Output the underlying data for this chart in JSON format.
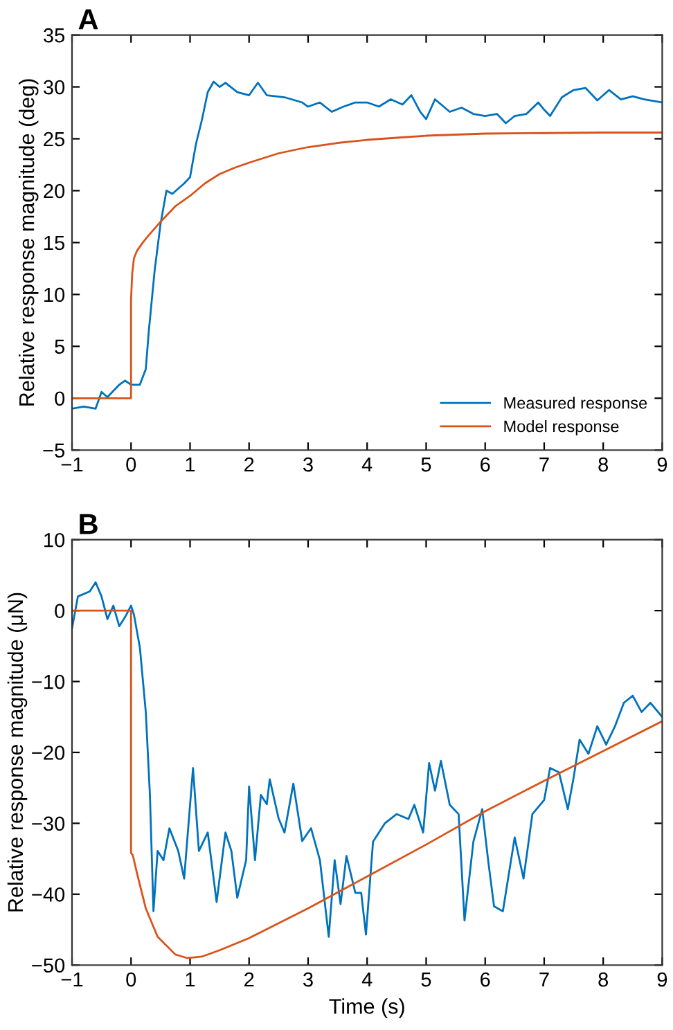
{
  "chart_data": [
    {
      "type": "line",
      "title": "A",
      "ylabel": "Relative response magnitude (deg)",
      "xlim": [
        -1,
        9
      ],
      "ylim": [
        -5,
        35
      ],
      "xticks": [
        -1,
        0,
        1,
        2,
        3,
        4,
        5,
        6,
        7,
        8,
        9
      ],
      "yticks": [
        -5,
        0,
        5,
        10,
        15,
        20,
        25,
        30,
        35
      ],
      "grid": false,
      "legend": "bottom right",
      "series": [
        {
          "name": "Measured response",
          "color": "#0072bd",
          "x": [
            -1,
            -0.8,
            -0.6,
            -0.5,
            -0.4,
            -0.2,
            -0.1,
            0,
            0.15,
            0.25,
            0.3,
            0.4,
            0.5,
            0.6,
            0.7,
            0.8,
            0.9,
            1.0,
            1.1,
            1.2,
            1.3,
            1.4,
            1.5,
            1.6,
            1.8,
            2.0,
            2.15,
            2.3,
            2.6,
            2.9,
            3.0,
            3.2,
            3.4,
            3.6,
            3.8,
            4.0,
            4.2,
            4.4,
            4.6,
            4.75,
            4.9,
            5.0,
            5.15,
            5.4,
            5.6,
            5.8,
            6.0,
            6.2,
            6.35,
            6.5,
            6.7,
            6.9,
            7.0,
            7.1,
            7.3,
            7.5,
            7.7,
            7.9,
            8.1,
            8.3,
            8.5,
            8.7,
            9.0
          ],
          "values": [
            -1.0,
            -0.8,
            -1.0,
            0.6,
            0.1,
            1.3,
            1.7,
            1.3,
            1.3,
            2.8,
            6.4,
            12.3,
            16.8,
            20.0,
            19.7,
            20.2,
            20.7,
            21.3,
            24.5,
            26.8,
            29.5,
            30.5,
            30.0,
            30.4,
            29.5,
            29.2,
            30.4,
            29.2,
            29.0,
            28.5,
            28.1,
            28.5,
            27.6,
            28.1,
            28.5,
            28.5,
            28.1,
            28.8,
            28.3,
            29.2,
            27.6,
            26.9,
            28.8,
            27.6,
            28.0,
            27.4,
            27.2,
            27.4,
            26.5,
            27.2,
            27.4,
            28.5,
            27.8,
            27.2,
            29.0,
            29.7,
            29.9,
            28.7,
            29.7,
            28.8,
            29.1,
            28.8,
            28.5
          ]
        },
        {
          "name": "Model response",
          "color": "#d95319",
          "x": [
            -1,
            0,
            0,
            0.02,
            0.05,
            0.1,
            0.2,
            0.3,
            0.5,
            0.75,
            1,
            1.25,
            1.5,
            1.75,
            2,
            2.5,
            3,
            3.5,
            4,
            4.5,
            5,
            6,
            7,
            8,
            9
          ],
          "values": [
            0,
            0,
            9.5,
            12.0,
            13.5,
            14.2,
            15.0,
            15.7,
            17.0,
            18.5,
            19.5,
            20.7,
            21.6,
            22.2,
            22.7,
            23.6,
            24.2,
            24.6,
            24.9,
            25.1,
            25.3,
            25.5,
            25.55,
            25.6,
            25.6
          ]
        }
      ]
    },
    {
      "type": "line",
      "title": "B",
      "xlabel": "Time (s)",
      "ylabel": "Relative response magnitude (μN)",
      "xlim": [
        -1,
        9
      ],
      "ylim": [
        -50,
        10
      ],
      "xticks": [
        -1,
        0,
        1,
        2,
        3,
        4,
        5,
        6,
        7,
        8,
        9
      ],
      "yticks": [
        -50,
        -40,
        -30,
        -20,
        -10,
        0,
        10
      ],
      "grid": false,
      "series": [
        {
          "color": "#0072bd",
          "x": [
            -1,
            -0.9,
            -0.7,
            -0.6,
            -0.5,
            -0.4,
            -0.3,
            -0.2,
            -0.1,
            0,
            0.05,
            0.15,
            0.25,
            0.32,
            0.38,
            0.45,
            0.55,
            0.65,
            0.8,
            0.9,
            1.05,
            1.15,
            1.3,
            1.45,
            1.6,
            1.7,
            1.8,
            1.95,
            2.0,
            2.1,
            2.2,
            2.3,
            2.35,
            2.5,
            2.6,
            2.75,
            2.9,
            3.05,
            3.2,
            3.35,
            3.45,
            3.55,
            3.65,
            3.8,
            3.9,
            3.98,
            4.1,
            4.3,
            4.5,
            4.7,
            4.8,
            4.95,
            5.05,
            5.15,
            5.25,
            5.4,
            5.55,
            5.65,
            5.8,
            5.95,
            6.05,
            6.15,
            6.3,
            6.5,
            6.65,
            6.8,
            7.0,
            7.1,
            7.25,
            7.4,
            7.5,
            7.6,
            7.75,
            7.9,
            8.05,
            8.2,
            8.35,
            8.5,
            8.65,
            8.8,
            9.0
          ],
          "values": [
            -2.5,
            2.0,
            2.7,
            4.0,
            2.0,
            -1.2,
            0.7,
            -2.2,
            -0.9,
            0.7,
            -0.6,
            -5.2,
            -14.3,
            -26.0,
            -42.4,
            -33.9,
            -35.2,
            -30.7,
            -33.9,
            -37.8,
            -22.2,
            -33.9,
            -31.3,
            -41.1,
            -31.3,
            -33.9,
            -40.5,
            -35.2,
            -24.8,
            -35.2,
            -26.0,
            -27.3,
            -23.8,
            -29.3,
            -31.3,
            -24.4,
            -32.5,
            -30.7,
            -35.2,
            -46.0,
            -35.2,
            -41.4,
            -34.6,
            -39.8,
            -39.8,
            -45.7,
            -32.6,
            -30.0,
            -28.7,
            -29.4,
            -27.4,
            -31.3,
            -21.5,
            -25.4,
            -21.2,
            -27.4,
            -28.7,
            -43.7,
            -32.6,
            -28.0,
            -35.2,
            -41.7,
            -42.4,
            -32.0,
            -37.8,
            -28.7,
            -26.7,
            -22.2,
            -22.8,
            -28.0,
            -23.5,
            -18.2,
            -20.2,
            -16.3,
            -18.9,
            -16.3,
            -13.0,
            -12.0,
            -14.3,
            -13.0,
            -15.0
          ]
        },
        {
          "color": "#d95319",
          "x": [
            -1,
            0,
            0,
            0.03,
            0.1,
            0.25,
            0.45,
            0.75,
            0.95,
            1.2,
            1.5,
            2,
            3,
            4,
            5,
            6,
            7,
            8,
            9
          ],
          "values": [
            0,
            0,
            -34.2,
            -34.5,
            -37.0,
            -42.0,
            -46.0,
            -48.5,
            -49.0,
            -48.8,
            -47.9,
            -46.2,
            -42.0,
            -37.5,
            -33.0,
            -28.3,
            -24.0,
            -19.8,
            -15.6
          ]
        }
      ]
    }
  ]
}
